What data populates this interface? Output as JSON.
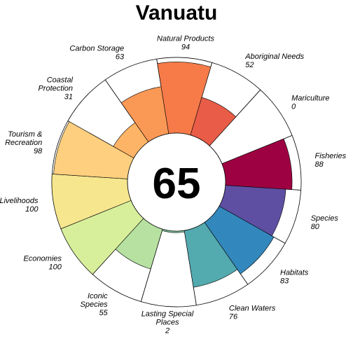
{
  "chart_data": {
    "type": "flower",
    "title": "Vanuatu",
    "overall_score": "65",
    "max_score": 100,
    "petals": [
      {
        "lines": [
          "Fisheries"
        ],
        "value": 88,
        "color": "#9E0142"
      },
      {
        "lines": [
          "Species"
        ],
        "value": 80,
        "color": "#5E4FA2"
      },
      {
        "lines": [
          "Habitats"
        ],
        "value": 83,
        "color": "#3288BD"
      },
      {
        "lines": [
          "Clean Waters"
        ],
        "value": 76,
        "color": "#53AAAF"
      },
      {
        "lines": [
          "Lasting Special",
          "Places"
        ],
        "value": 2,
        "color": "#88CFA4"
      },
      {
        "lines": [
          "Iconic",
          "Species"
        ],
        "value": 55,
        "color": "#B6E1A1"
      },
      {
        "lines": [
          "Economies"
        ],
        "value": 100,
        "color": "#D7EF9B"
      },
      {
        "lines": [
          "Livelihoods"
        ],
        "value": 100,
        "color": "#F6E68E"
      },
      {
        "lines": [
          "Tourism &",
          "Recreation"
        ],
        "value": 98,
        "color": "#FDCF7E"
      },
      {
        "lines": [
          "Coastal",
          "Protection"
        ],
        "value": 31,
        "color": "#FDB466"
      },
      {
        "lines": [
          "Carbon Storage"
        ],
        "value": 63,
        "color": "#FA9856"
      },
      {
        "lines": [
          "Natural Products"
        ],
        "value": 94,
        "color": "#F67B49"
      },
      {
        "lines": [
          "Aboriginal Needs"
        ],
        "value": 52,
        "color": "#E95C47"
      },
      {
        "lines": [
          "Mariculture"
        ],
        "value": 0,
        "color": "#D8434E"
      }
    ]
  }
}
